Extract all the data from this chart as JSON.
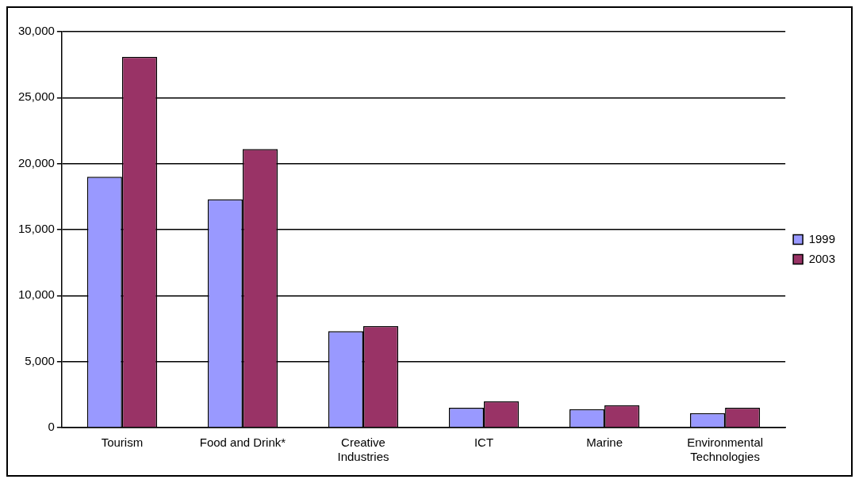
{
  "chart_data": {
    "type": "bar",
    "categories": [
      "Tourism",
      "Food and Drink*",
      [
        "Creative",
        "Industries"
      ],
      "ICT",
      "Marine",
      [
        "Environmental",
        "Technologies"
      ]
    ],
    "series": [
      {
        "name": "1999",
        "color": "#9999ff",
        "values": [
          19000,
          17300,
          7300,
          1500,
          1400,
          1100
        ]
      },
      {
        "name": "2003",
        "color": "#993366",
        "values": [
          28100,
          21100,
          7700,
          2000,
          1700,
          1500
        ]
      }
    ],
    "ylim": [
      0,
      30000
    ],
    "yticks": [
      {
        "value": 0,
        "label": "0"
      },
      {
        "value": 5000,
        "label": "5,000"
      },
      {
        "value": 10000,
        "label": "10,000"
      },
      {
        "value": 15000,
        "label": "15,000"
      },
      {
        "value": 20000,
        "label": "20,000"
      },
      {
        "value": 25000,
        "label": "25,000"
      },
      {
        "value": 30000,
        "label": "30,000"
      }
    ],
    "grid": "y",
    "legend": "right"
  }
}
